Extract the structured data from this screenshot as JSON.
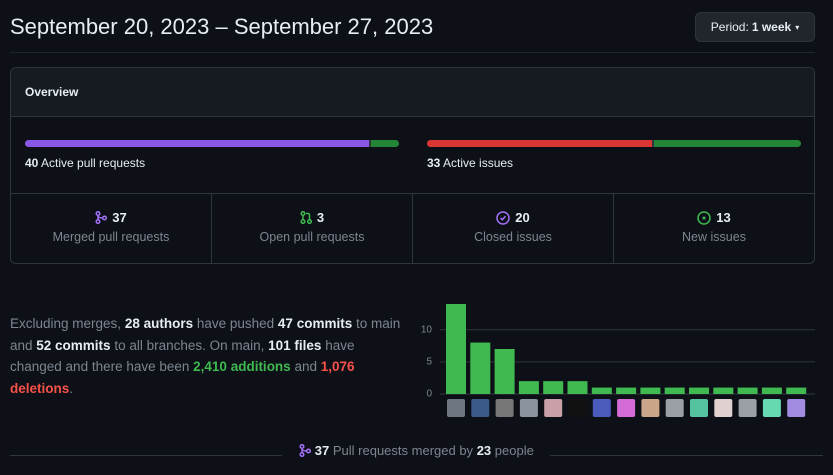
{
  "header": {
    "title": "September 20, 2023 – September 27, 2023",
    "period_label": "Period:",
    "period_value": "1 week"
  },
  "overview": {
    "title": "Overview",
    "pull_requests": {
      "count": 40,
      "label": "Active pull requests"
    },
    "issues": {
      "count": 33,
      "label": "Active issues"
    },
    "stats": [
      {
        "value": 37,
        "label": "Merged pull requests"
      },
      {
        "value": 3,
        "label": "Open pull requests"
      },
      {
        "value": 20,
        "label": "Closed issues"
      },
      {
        "value": 13,
        "label": "New issues"
      }
    ]
  },
  "summary": [
    {
      "text": "Excluding merges, ",
      "style": "plain"
    },
    {
      "text": "28 authors",
      "style": "bold"
    },
    {
      "text": " have pushed ",
      "style": "plain"
    },
    {
      "text": "47 commits",
      "style": "bold"
    },
    {
      "text": " to main and ",
      "style": "plain"
    },
    {
      "text": "52 commits",
      "style": "bold"
    },
    {
      "text": " to all branches. On main, ",
      "style": "plain"
    },
    {
      "text": "101 files",
      "style": "bold"
    },
    {
      "text": " have changed and there have been ",
      "style": "plain"
    },
    {
      "text": "2,410 additions",
      "style": "green"
    },
    {
      "text": " and ",
      "style": "plain"
    },
    {
      "text": "1,076 deletions",
      "style": "red"
    },
    {
      "text": ".",
      "style": "plain"
    }
  ],
  "chart_data": {
    "type": "bar",
    "values": [
      14,
      8,
      7,
      2,
      2,
      2,
      1,
      1,
      1,
      1,
      1,
      1,
      1,
      1,
      1
    ],
    "color": "#3fb950",
    "ylim": [
      0,
      14
    ],
    "yticks": [
      0,
      5,
      10
    ],
    "grid": true
  },
  "footer": {
    "count": 37,
    "text": "Pull requests merged by",
    "people": 23,
    "suffix": "people"
  }
}
